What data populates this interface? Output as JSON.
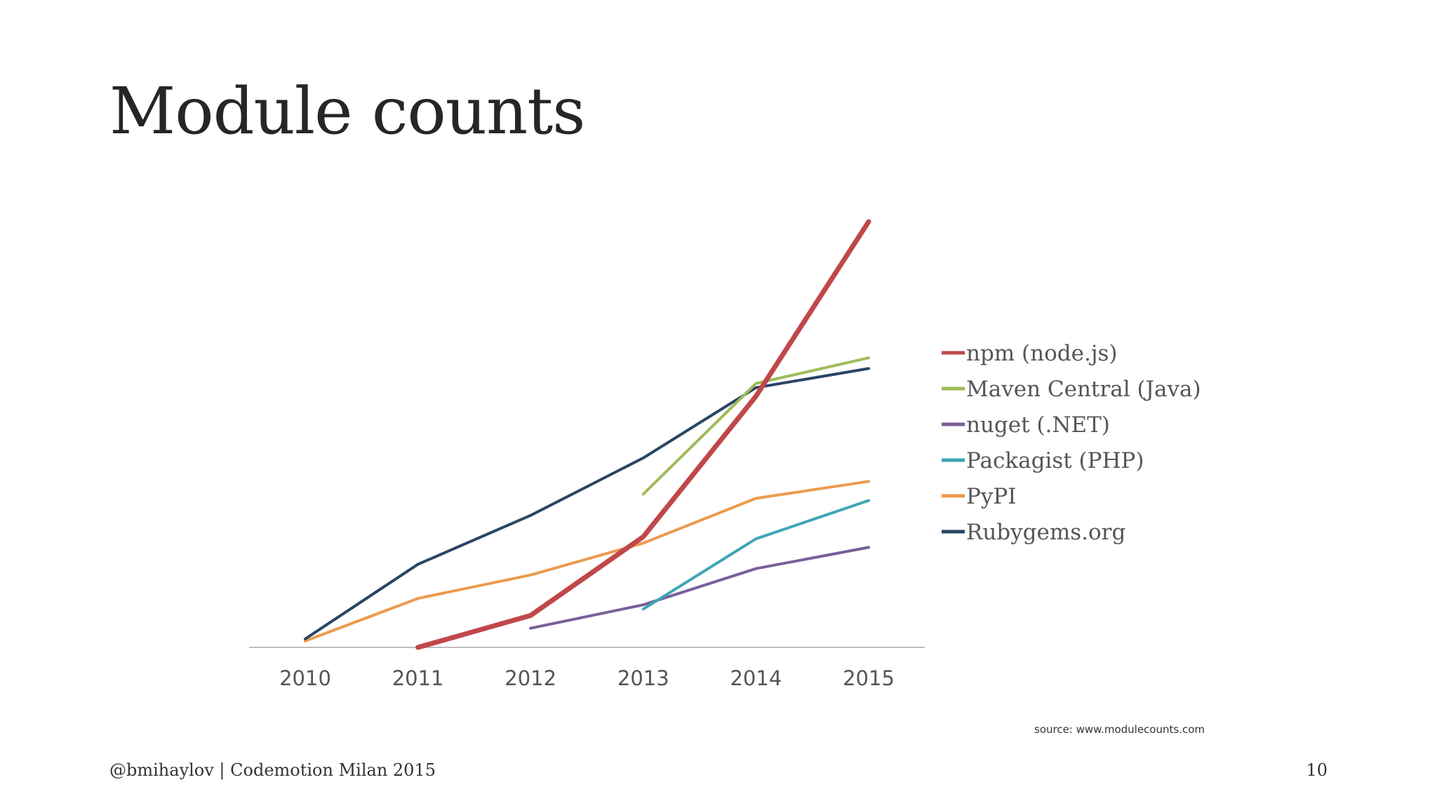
{
  "slide": {
    "title": "Module counts",
    "source": "source: www.modulecounts.com",
    "footer": "@bmihaylov | Codemotion Milan 2015",
    "page_number": "10"
  },
  "chart_data": {
    "type": "line",
    "title": "",
    "xlabel": "",
    "ylabel": "",
    "x": [
      2010,
      2011,
      2012,
      2013,
      2014,
      2015
    ],
    "x_tick_labels": [
      "2010",
      "2011",
      "2012",
      "2013",
      "2014",
      "2015"
    ],
    "ylim": [
      0,
      200000
    ],
    "grid": false,
    "legend_position": "right",
    "series": [
      {
        "name": "npm (node.js)",
        "color": "#c0474a",
        "x": [
          2011,
          2012,
          2013,
          2014,
          2015
        ],
        "values": [
          0,
          15000,
          52000,
          118000,
          200000
        ]
      },
      {
        "name": "Maven Central (Java)",
        "color": "#9fbb58",
        "x": [
          2013,
          2014,
          2015
        ],
        "values": [
          72000,
          124000,
          136000
        ]
      },
      {
        "name": "nuget (.NET)",
        "color": "#7a5f9a",
        "x": [
          2012,
          2013,
          2014,
          2015
        ],
        "values": [
          9000,
          20000,
          37000,
          47000
        ]
      },
      {
        "name": "Packagist (PHP)",
        "color": "#3fa6b7",
        "x": [
          2013,
          2014,
          2015
        ],
        "values": [
          18000,
          51000,
          69000
        ]
      },
      {
        "name": "PyPI",
        "color": "#ec9a4e",
        "x": [
          2010,
          2011,
          2012,
          2013,
          2014,
          2015
        ],
        "values": [
          3000,
          23000,
          34000,
          49000,
          70000,
          78000
        ]
      },
      {
        "name": "Rubygems.org",
        "color": "#2a4564",
        "x": [
          2010,
          2011,
          2012,
          2013,
          2014,
          2015
        ],
        "values": [
          4000,
          39000,
          62000,
          89000,
          122000,
          131000
        ]
      }
    ]
  }
}
